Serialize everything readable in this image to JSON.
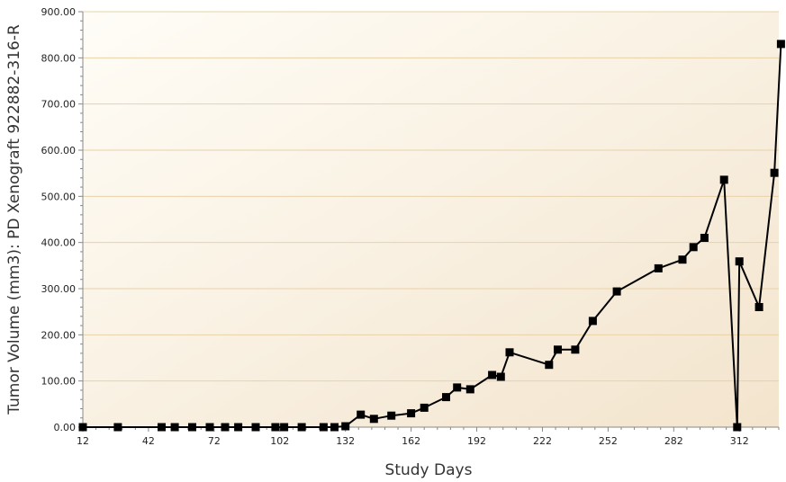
{
  "chart_data": {
    "type": "line",
    "title": "",
    "xlabel": "Study Days",
    "ylabel": "Tumor Volume (mm3): PD Xenograft 922882-316-R",
    "xlim": [
      12,
      330
    ],
    "ylim": [
      0,
      900
    ],
    "x_ticks": [
      12,
      42,
      72,
      102,
      132,
      162,
      192,
      222,
      252,
      282,
      312
    ],
    "y_ticks": [
      0,
      100,
      200,
      300,
      400,
      500,
      600,
      700,
      800,
      900
    ],
    "y_tick_labels": [
      "0.00",
      "100.00",
      "200.00",
      "300.00",
      "400.00",
      "500.00",
      "600.00",
      "700.00",
      "800.00",
      "900.00"
    ],
    "grid": "horizontal",
    "legend": "none",
    "colors": {
      "series": "#000000",
      "plot_background_light": "#fffdf7",
      "plot_background_dark": "#f3e4cd",
      "gridline": "#e9d2a7",
      "axis": "#888888"
    },
    "series": [
      {
        "x": [
          12,
          28,
          48,
          54,
          62,
          70,
          77,
          83,
          91,
          100,
          104,
          112,
          122,
          127,
          132,
          139,
          145,
          153,
          162,
          168,
          178,
          183,
          189,
          199,
          203,
          207,
          225,
          229,
          237,
          245,
          256,
          275,
          286,
          291,
          296,
          305,
          311,
          312,
          321,
          328,
          331
        ],
        "y": [
          0,
          0,
          0,
          0,
          0,
          0,
          0,
          0,
          0,
          0,
          0,
          0,
          0,
          0,
          2,
          27,
          18,
          25,
          30,
          42,
          65,
          86,
          82,
          113,
          109,
          162,
          135,
          168,
          168,
          230,
          294,
          344,
          363,
          390,
          410,
          536,
          0,
          359,
          260,
          551,
          830
        ]
      }
    ]
  }
}
